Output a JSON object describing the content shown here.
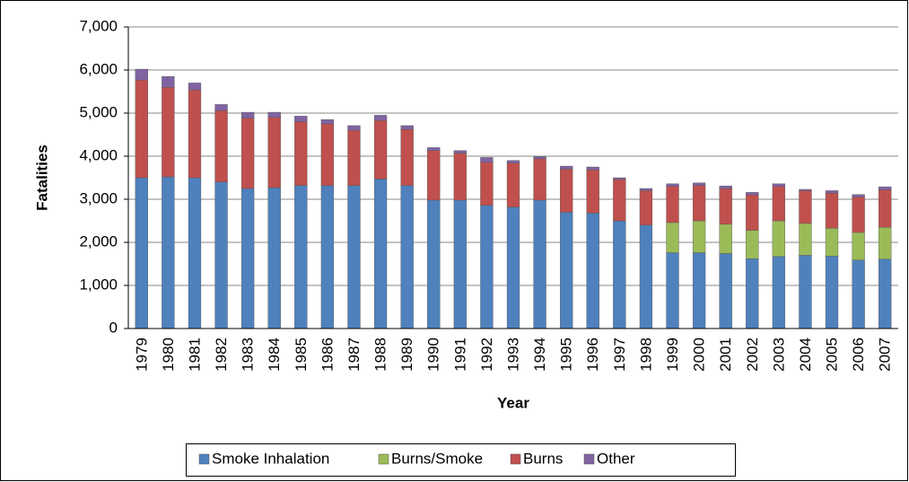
{
  "chart_data": {
    "type": "stacked_bar",
    "ylabel": "Fatalities",
    "xlabel": "Year",
    "categories": [
      "1979",
      "1980",
      "1981",
      "1982",
      "1983",
      "1984",
      "1985",
      "1986",
      "1987",
      "1988",
      "1989",
      "1990",
      "1991",
      "1992",
      "1993",
      "1994",
      "1995",
      "1996",
      "1997",
      "1998",
      "1999",
      "2000",
      "2001",
      "2002",
      "2003",
      "2004",
      "2005",
      "2006",
      "2007"
    ],
    "series": [
      {
        "name": "Smoke Inhalation",
        "color": "#4f81bd",
        "values": [
          3500,
          3520,
          3500,
          3400,
          3250,
          3270,
          3320,
          3320,
          3320,
          3470,
          3320,
          2980,
          2980,
          2860,
          2820,
          2980,
          2700,
          2680,
          2500,
          2400,
          1760,
          1760,
          1740,
          1620,
          1670,
          1700,
          1680,
          1590,
          1610
        ]
      },
      {
        "name": "Burns/Smoke",
        "color": "#9bbb59",
        "values": [
          null,
          null,
          null,
          null,
          null,
          null,
          null,
          null,
          null,
          null,
          null,
          null,
          null,
          null,
          null,
          null,
          null,
          null,
          null,
          null,
          700,
          740,
          680,
          660,
          830,
          740,
          650,
          640,
          740
        ]
      },
      {
        "name": "Burns",
        "color": "#c0504d",
        "values": [
          2270,
          2080,
          2040,
          1660,
          1630,
          1630,
          1480,
          1430,
          1280,
          1360,
          1300,
          1150,
          1090,
          1000,
          1020,
          960,
          1000,
          1000,
          960,
          800,
          840,
          820,
          830,
          820,
          800,
          760,
          810,
          820,
          870
        ]
      },
      {
        "name": "Other",
        "color": "#8064a2",
        "values": [
          250,
          250,
          160,
          140,
          140,
          120,
          130,
          100,
          110,
          120,
          90,
          70,
          60,
          110,
          60,
          50,
          70,
          70,
          40,
          50,
          60,
          60,
          60,
          60,
          60,
          30,
          60,
          60,
          70
        ]
      }
    ],
    "ylim": [
      0,
      7000
    ],
    "yticks": [
      0,
      {
        "value": 1000,
        "label": "1,000"
      },
      {
        "value": 2000,
        "label": "2,000"
      },
      {
        "value": 3000,
        "label": "3,000"
      },
      {
        "value": 4000,
        "label": "4,000"
      },
      {
        "value": 5000,
        "label": "5,000"
      },
      {
        "value": 6000,
        "label": "6,000"
      },
      {
        "value": 7000,
        "label": "7,000"
      }
    ],
    "grid": true,
    "legend": "bottom"
  }
}
